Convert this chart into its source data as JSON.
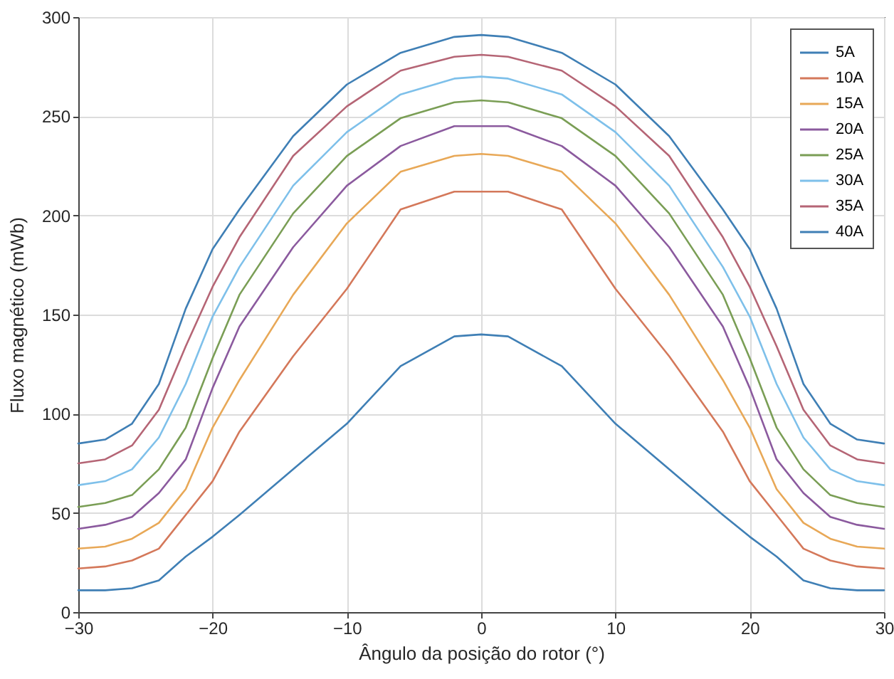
{
  "chart_data": {
    "type": "line",
    "xlabel": "Ângulo da posição do rotor (°)",
    "ylabel": "Fluxo magnético (mWb)",
    "x": [
      -30,
      -28,
      -26,
      -24,
      -22,
      -20,
      -18,
      -14,
      -10,
      -6,
      -2,
      0,
      2,
      6,
      10,
      14,
      18,
      20,
      22,
      24,
      26,
      28,
      30
    ],
    "series": [
      {
        "name": "5A",
        "color": "#3f7fb5",
        "values": [
          11,
          11,
          12,
          16,
          28,
          38,
          49,
          72,
          95,
          124,
          139,
          140,
          139,
          124,
          95,
          72,
          49,
          38,
          28,
          16,
          12,
          11,
          11
        ]
      },
      {
        "name": "10A",
        "color": "#d4785a",
        "values": [
          22,
          23,
          26,
          32,
          49,
          66,
          91,
          129,
          163,
          203,
          212,
          212,
          212,
          203,
          163,
          129,
          91,
          66,
          49,
          32,
          26,
          23,
          22
        ]
      },
      {
        "name": "15A",
        "color": "#e8a857",
        "values": [
          32,
          33,
          37,
          45,
          62,
          93,
          117,
          160,
          196,
          222,
          230,
          231,
          230,
          222,
          196,
          160,
          117,
          93,
          62,
          45,
          37,
          33,
          32
        ]
      },
      {
        "name": "20A",
        "color": "#8b5a9e",
        "values": [
          42,
          44,
          48,
          60,
          77,
          113,
          144,
          184,
          215,
          235,
          245,
          245,
          245,
          235,
          215,
          184,
          144,
          113,
          77,
          60,
          48,
          44,
          42
        ]
      },
      {
        "name": "25A",
        "color": "#7a9e55",
        "values": [
          53,
          55,
          59,
          72,
          93,
          128,
          160,
          201,
          230,
          249,
          257,
          258,
          257,
          249,
          230,
          201,
          160,
          128,
          93,
          72,
          59,
          55,
          53
        ]
      },
      {
        "name": "30A",
        "color": "#7ec0ea",
        "values": [
          64,
          66,
          72,
          88,
          115,
          149,
          174,
          215,
          242,
          261,
          269,
          270,
          269,
          261,
          242,
          215,
          174,
          149,
          115,
          88,
          72,
          66,
          64
        ]
      },
      {
        "name": "35A",
        "color": "#b56575",
        "values": [
          75,
          77,
          84,
          102,
          134,
          164,
          189,
          230,
          255,
          273,
          280,
          281,
          280,
          273,
          255,
          230,
          189,
          164,
          134,
          102,
          84,
          77,
          75
        ]
      },
      {
        "name": "40A",
        "color": "#3f7fb5",
        "values": [
          85,
          87,
          95,
          115,
          153,
          183,
          203,
          240,
          266,
          282,
          290,
          291,
          290,
          282,
          266,
          240,
          203,
          183,
          153,
          115,
          95,
          87,
          85
        ]
      }
    ],
    "xlim": [
      -30,
      30
    ],
    "xticks": [
      -30,
      -20,
      -10,
      0,
      10,
      20,
      30
    ],
    "ylim": [
      0,
      300
    ],
    "yticks": [
      0,
      50,
      100,
      150,
      200,
      250,
      300
    ],
    "grid": true,
    "legend": "top right",
    "line_style": "solid"
  }
}
